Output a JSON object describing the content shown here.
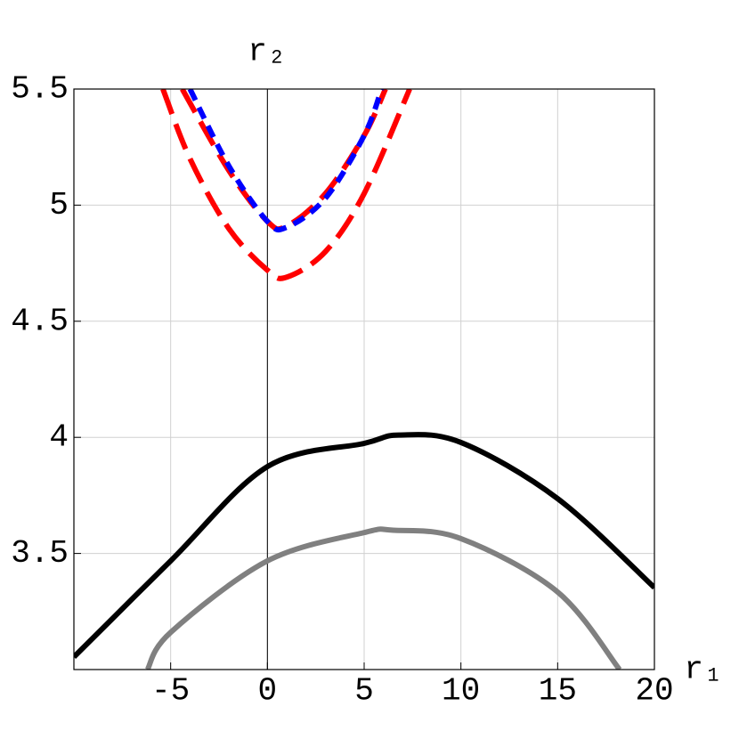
{
  "chart_data": {
    "type": "line",
    "x_label": "r₁",
    "y_label": "r₂",
    "xlim": [
      -10,
      20
    ],
    "ylim": [
      3,
      5.5
    ],
    "xticks": [
      -5,
      0,
      5,
      10,
      15,
      20
    ],
    "yticks": [
      3.5,
      4,
      4.5,
      5,
      5.5
    ],
    "grid": true,
    "series": [
      {
        "color": "#000000",
        "linestyle": "solid",
        "x": [
          -10,
          -5,
          0,
          5,
          6.8,
          10,
          15,
          20
        ],
        "values": [
          3.054,
          3.468,
          3.874,
          3.974,
          4.01,
          3.978,
          3.736,
          3.353
        ]
      },
      {
        "color": "#808080",
        "linestyle": "solid",
        "x": [
          -6.2,
          -5,
          0,
          5,
          6.5,
          10,
          15,
          18.2
        ],
        "values": [
          3.0,
          3.16,
          3.468,
          3.59,
          3.6,
          3.564,
          3.334,
          3.0
        ]
      },
      {
        "color": "#ff0000",
        "linestyle": "long-dash",
        "x": [
          -5.4,
          -4,
          -2,
          0,
          1,
          3,
          5,
          7.35
        ],
        "values": [
          5.5,
          5.2,
          4.9,
          4.72,
          4.69,
          4.8,
          5.05,
          5.5
        ]
      },
      {
        "color": "#ff0000",
        "linestyle": "long-dash",
        "x": [
          -4.4,
          -2,
          0,
          1,
          3,
          5,
          6.1
        ],
        "values": [
          5.5,
          5.15,
          4.93,
          4.91,
          5.05,
          5.3,
          5.5
        ]
      },
      {
        "color": "#0000ff",
        "linestyle": "short-dash",
        "x": [
          -4,
          -2,
          0,
          1,
          3,
          5,
          5.9
        ],
        "values": [
          5.5,
          5.17,
          4.93,
          4.905,
          5.03,
          5.3,
          5.5
        ]
      }
    ]
  }
}
